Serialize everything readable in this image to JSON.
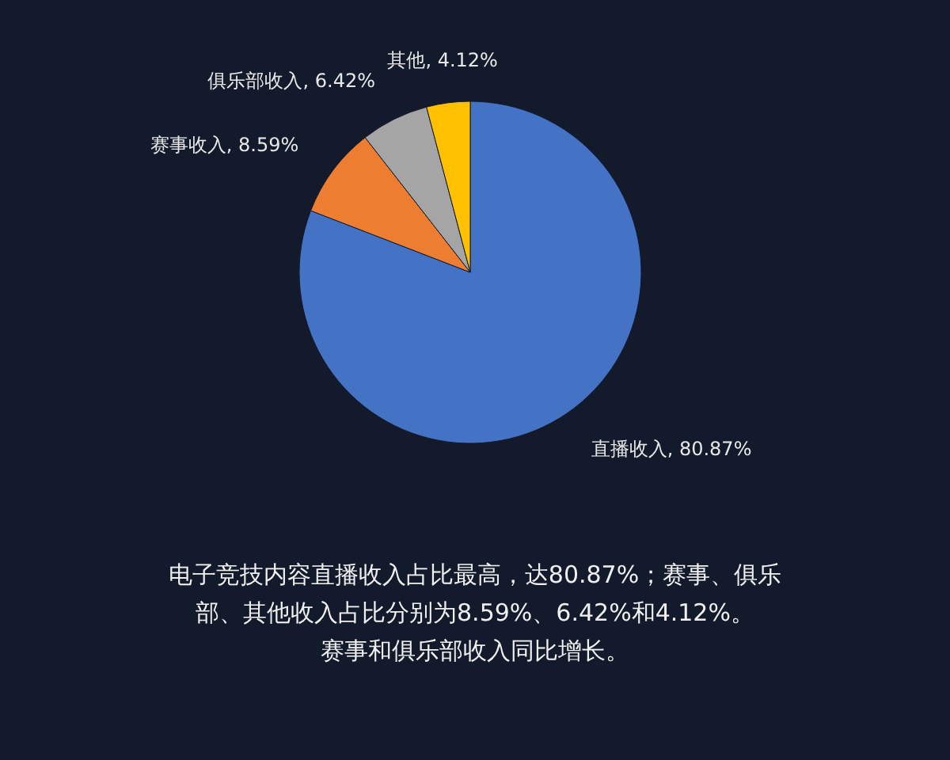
{
  "chart_data": {
    "type": "pie",
    "categories": [
      "直播收入",
      "赛事收入",
      "俱乐部收入",
      "其他"
    ],
    "values": [
      80.87,
      8.59,
      6.42,
      4.12
    ],
    "colors": [
      "#4472c4",
      "#ed7d31",
      "#a5a5a5",
      "#ffc000"
    ],
    "value_labels": [
      "80.87%",
      "8.59%",
      "6.42%",
      "4.12%"
    ],
    "legend": false,
    "annotations": [
      "电子竞技内容直播收入占比最高，达80.87%；赛事、俱乐",
      "部、其他收入占比分别为8.59%、6.42%和4.12%。",
      "赛事和俱乐部收入同比增长。"
    ]
  }
}
